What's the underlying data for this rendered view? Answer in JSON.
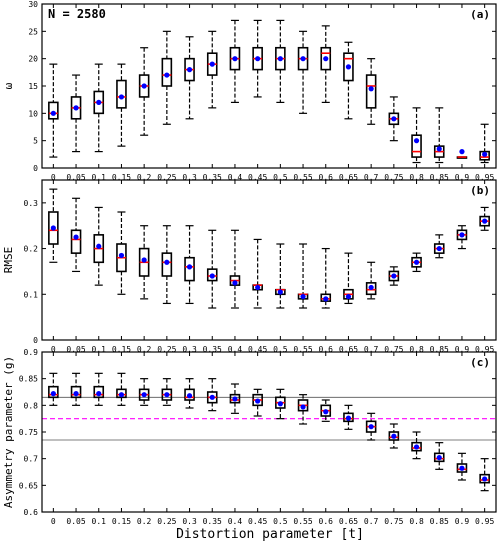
{
  "x_tick_labels": [
    "0",
    "0.05",
    "0.1",
    "0.15",
    "0.2",
    "0.25",
    "0.3",
    "0.35",
    "0.4",
    "0.45",
    "0.5",
    "0.55",
    "0.6",
    "0.65",
    "0.7",
    "0.75",
    "0.8",
    "0.85",
    "0.9",
    "0.95"
  ],
  "xlabel": "Distortion parameter [t]",
  "colors": {
    "median": "#ff0000",
    "mean": "#0000ff",
    "box": "#000000",
    "hline_pink": "#ff00ff",
    "hline_gray": "#555555"
  },
  "chart_data": [
    {
      "type": "box",
      "panel_label": "(a)",
      "annotation": "N = 2580",
      "ylabel": "ω",
      "ylim": [
        0,
        30
      ],
      "yticks": [
        0,
        5,
        10,
        15,
        20,
        25,
        30
      ],
      "ytick_labels": [
        "0",
        "5",
        "10",
        "15",
        "20",
        "25",
        "30"
      ],
      "series": {
        "whisker_low": [
          2,
          3,
          3,
          4,
          6,
          8,
          9,
          11,
          12,
          13,
          12,
          10,
          12,
          9,
          8,
          5,
          1,
          1,
          2,
          1
        ],
        "q1": [
          9,
          9,
          10,
          11,
          13,
          15,
          16,
          17,
          18,
          18,
          18,
          18,
          18,
          16,
          11,
          8,
          2,
          2,
          2,
          1.5
        ],
        "median": [
          10,
          11,
          12,
          13,
          15,
          17,
          18,
          19,
          20,
          20,
          20,
          20,
          21,
          20,
          15,
          9,
          3,
          3,
          2,
          2
        ],
        "mean": [
          10,
          11,
          12,
          13,
          15,
          17,
          18,
          19,
          20,
          20,
          20,
          20,
          20,
          18.5,
          14.5,
          9,
          5,
          3.5,
          3,
          2.5
        ],
        "q3": [
          12,
          13,
          14,
          16,
          17,
          20,
          20,
          21,
          22,
          22,
          22,
          22,
          22,
          21,
          17,
          10,
          6,
          4,
          2,
          3
        ],
        "whisker_high": [
          19,
          17,
          19,
          19,
          22,
          25,
          24,
          25,
          27,
          27,
          27,
          25,
          26,
          23,
          20,
          13,
          11,
          11,
          2,
          8
        ]
      }
    },
    {
      "type": "box",
      "panel_label": "(b)",
      "ylabel": "RMSE",
      "ylim": [
        0,
        0.35
      ],
      "yticks": [
        0,
        0.1,
        0.2,
        0.3
      ],
      "ytick_labels": [
        "0",
        "0.1",
        "0.2",
        "0.3"
      ],
      "series": {
        "whisker_low": [
          0.17,
          0.15,
          0.12,
          0.1,
          0.09,
          0.08,
          0.08,
          0.07,
          0.07,
          0.07,
          0.07,
          0.07,
          0.07,
          0.08,
          0.09,
          0.12,
          0.15,
          0.18,
          0.2,
          0.24
        ],
        "q1": [
          0.21,
          0.19,
          0.17,
          0.15,
          0.14,
          0.14,
          0.13,
          0.13,
          0.12,
          0.11,
          0.1,
          0.09,
          0.085,
          0.09,
          0.1,
          0.13,
          0.16,
          0.19,
          0.22,
          0.25
        ],
        "median": [
          0.24,
          0.22,
          0.2,
          0.18,
          0.17,
          0.17,
          0.16,
          0.14,
          0.13,
          0.12,
          0.11,
          0.1,
          0.09,
          0.1,
          0.11,
          0.14,
          0.17,
          0.2,
          0.23,
          0.26
        ],
        "mean": [
          0.245,
          0.225,
          0.205,
          0.185,
          0.175,
          0.17,
          0.16,
          0.14,
          0.125,
          0.115,
          0.105,
          0.095,
          0.09,
          0.095,
          0.115,
          0.14,
          0.17,
          0.2,
          0.23,
          0.26
        ],
        "q3": [
          0.28,
          0.24,
          0.23,
          0.21,
          0.2,
          0.19,
          0.18,
          0.155,
          0.14,
          0.12,
          0.11,
          0.1,
          0.1,
          0.11,
          0.125,
          0.15,
          0.18,
          0.21,
          0.24,
          0.27
        ],
        "whisker_high": [
          0.33,
          0.31,
          0.29,
          0.28,
          0.25,
          0.25,
          0.25,
          0.24,
          0.24,
          0.22,
          0.21,
          0.21,
          0.2,
          0.19,
          0.17,
          0.16,
          0.19,
          0.23,
          0.25,
          0.29
        ]
      }
    },
    {
      "type": "box",
      "panel_label": "(c)",
      "ylabel": "Asymmetry parameter (g)",
      "ylim": [
        0.6,
        0.9
      ],
      "yticks": [
        0.6,
        0.65,
        0.7,
        0.75,
        0.8,
        0.85,
        0.9
      ],
      "ytick_labels": [
        "0.6",
        "0.65",
        "0.7",
        "0.75",
        "0.8",
        "0.85",
        "0.9"
      ],
      "hlines": [
        {
          "y": 0.815,
          "style": "gray"
        },
        {
          "y": 0.775,
          "style": "pink-dashed"
        },
        {
          "y": 0.735,
          "style": "gray"
        }
      ],
      "series": {
        "whisker_low": [
          0.8,
          0.8,
          0.8,
          0.8,
          0.8,
          0.8,
          0.795,
          0.79,
          0.785,
          0.78,
          0.775,
          0.765,
          0.77,
          0.755,
          0.735,
          0.72,
          0.7,
          0.68,
          0.66,
          0.64
        ],
        "q1": [
          0.815,
          0.815,
          0.815,
          0.815,
          0.81,
          0.81,
          0.81,
          0.805,
          0.805,
          0.8,
          0.795,
          0.79,
          0.78,
          0.77,
          0.75,
          0.735,
          0.715,
          0.695,
          0.675,
          0.655
        ],
        "median": [
          0.82,
          0.82,
          0.82,
          0.82,
          0.82,
          0.82,
          0.815,
          0.815,
          0.81,
          0.81,
          0.805,
          0.8,
          0.79,
          0.775,
          0.76,
          0.74,
          0.72,
          0.7,
          0.68,
          0.66
        ],
        "mean": [
          0.822,
          0.822,
          0.822,
          0.82,
          0.82,
          0.82,
          0.818,
          0.815,
          0.812,
          0.808,
          0.803,
          0.797,
          0.788,
          0.776,
          0.76,
          0.742,
          0.722,
          0.702,
          0.682,
          0.662
        ],
        "q3": [
          0.835,
          0.835,
          0.835,
          0.83,
          0.83,
          0.83,
          0.83,
          0.825,
          0.82,
          0.82,
          0.815,
          0.81,
          0.8,
          0.785,
          0.77,
          0.75,
          0.73,
          0.71,
          0.69,
          0.67
        ],
        "whisker_high": [
          0.86,
          0.86,
          0.86,
          0.86,
          0.85,
          0.85,
          0.85,
          0.85,
          0.84,
          0.83,
          0.83,
          0.82,
          0.81,
          0.8,
          0.785,
          0.765,
          0.75,
          0.73,
          0.71,
          0.7
        ]
      }
    }
  ]
}
